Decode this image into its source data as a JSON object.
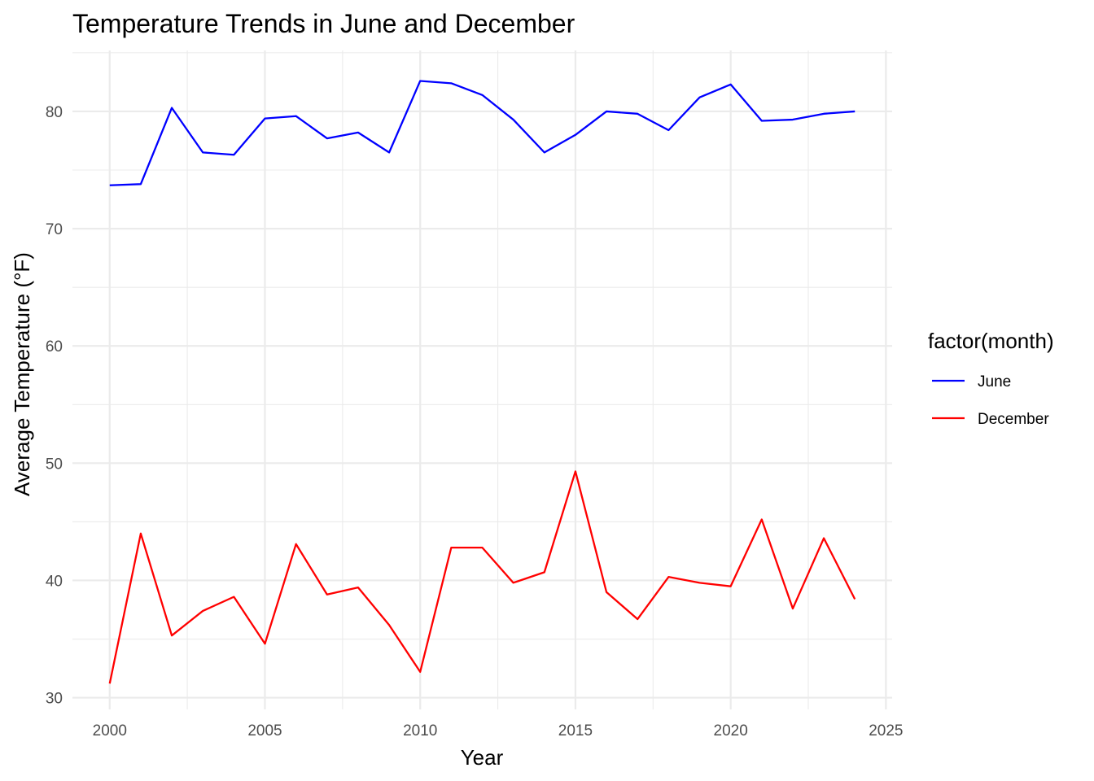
{
  "chart_data": {
    "type": "line",
    "title": "Temperature Trends in June and December",
    "xlabel": "Year",
    "ylabel": "Average Temperature (°F)",
    "xlim": [
      1998.8,
      2025.2
    ],
    "ylim": [
      29.0,
      85.2
    ],
    "x_ticks": [
      2000,
      2005,
      2010,
      2015,
      2020,
      2025
    ],
    "y_ticks": [
      30,
      40,
      50,
      60,
      70,
      80
    ],
    "grid": true,
    "legend": {
      "title": "factor(month)",
      "position": "right"
    },
    "x": [
      2000,
      2001,
      2002,
      2003,
      2004,
      2005,
      2006,
      2007,
      2008,
      2009,
      2010,
      2011,
      2012,
      2013,
      2014,
      2015,
      2016,
      2017,
      2018,
      2019,
      2020,
      2021,
      2022,
      2023,
      2024
    ],
    "series": [
      {
        "name": "June",
        "color": "#0000ff",
        "values": [
          73.7,
          73.8,
          80.3,
          76.5,
          76.3,
          79.4,
          79.6,
          77.7,
          78.2,
          76.5,
          82.6,
          82.4,
          81.4,
          79.3,
          76.5,
          78.0,
          80.0,
          79.8,
          78.4,
          81.2,
          82.3,
          79.2,
          79.3,
          79.8,
          80.0
        ]
      },
      {
        "name": "December",
        "color": "#ff0000",
        "values": [
          31.2,
          44.0,
          35.3,
          37.4,
          38.6,
          34.6,
          43.1,
          38.8,
          39.4,
          36.2,
          32.2,
          42.8,
          42.8,
          39.8,
          40.7,
          49.3,
          39.0,
          36.7,
          40.3,
          39.8,
          39.5,
          45.2,
          37.6,
          43.6,
          38.4
        ]
      }
    ]
  }
}
